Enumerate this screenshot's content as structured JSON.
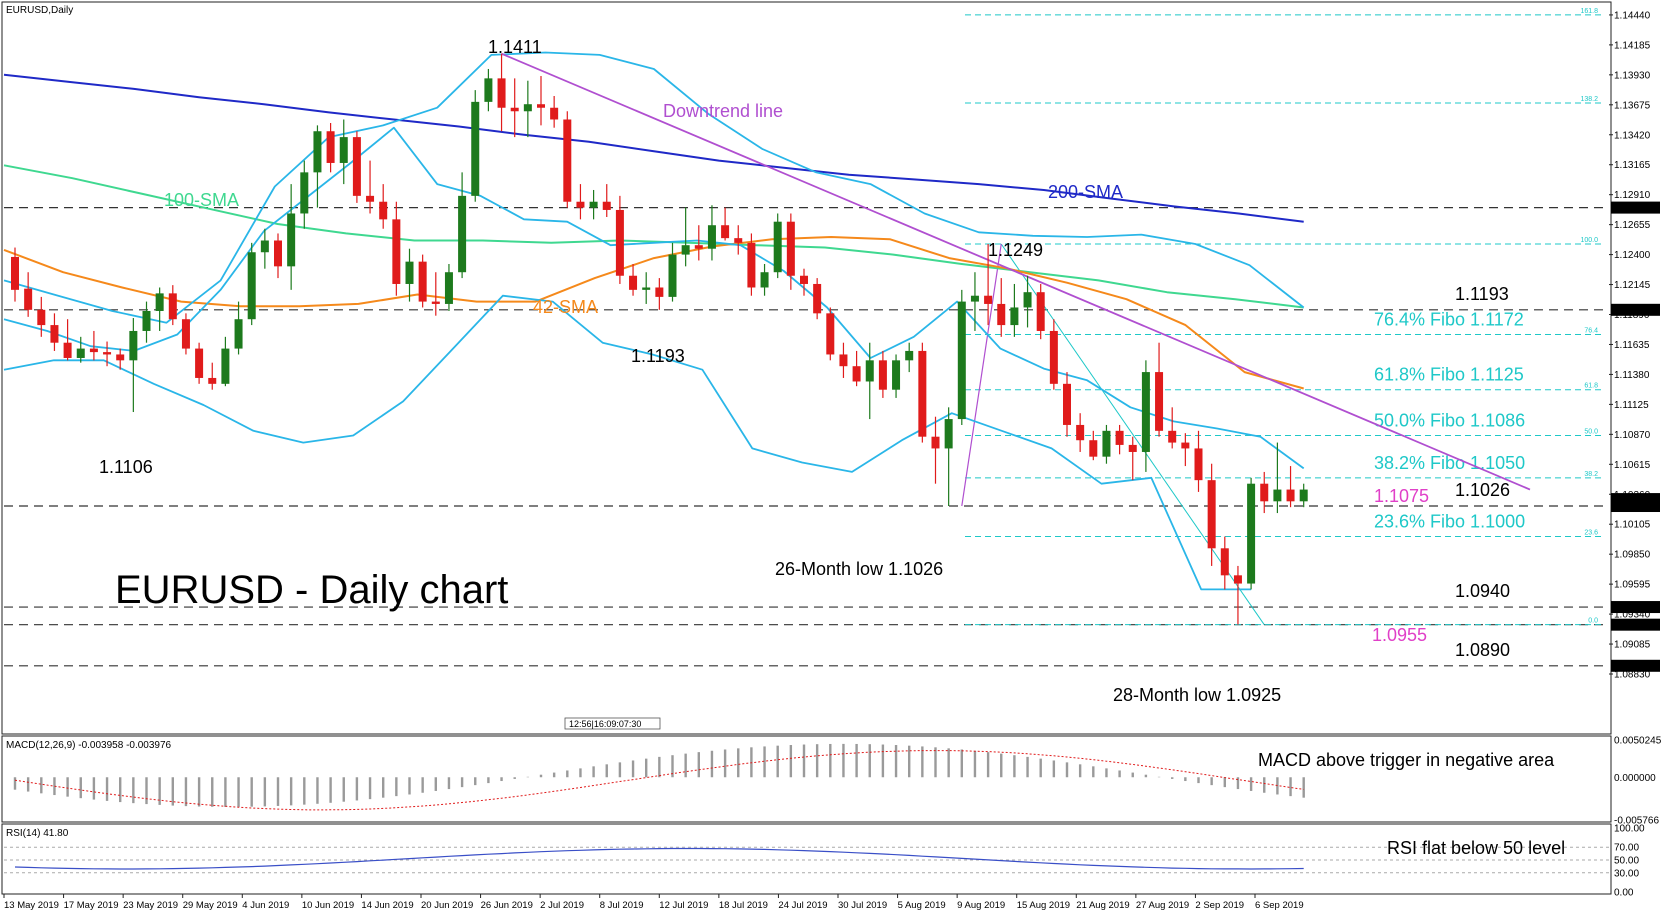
{
  "header": {
    "symbol": "EURUSD,Daily"
  },
  "title": "EURUSD - Daily chart",
  "colors": {
    "bull": "#1d7a1d",
    "bear": "#e01b1b",
    "sma200": "#1f29c7",
    "sma100": "#3fd890",
    "sma42": "#f5891b",
    "bollinger": "#2ab6e8",
    "downtrend": "#b04fd0",
    "fibo": "#1ec8c8",
    "magenta": "#e040c8",
    "macd_signal": "#e01b1b",
    "rsi": "#3a4fc7"
  },
  "chart_data": [
    {
      "type": "candlestick",
      "name": "price",
      "ylim": [
        1.08745,
        1.14533
      ],
      "y_ticks": [
        "1.14440",
        "1.14185",
        "1.13930",
        "1.13675",
        "1.13420",
        "1.13165",
        "1.12910",
        "1.12655",
        "1.12400",
        "1.12145",
        "1.11890",
        "1.11635",
        "1.11380",
        "1.11125",
        "1.10870",
        "1.10615",
        "1.10360",
        "1.10105",
        "1.09850",
        "1.09595",
        "1.09340",
        "1.09085",
        "1.08830"
      ],
      "x_labels": [
        "13 May 2019",
        "17 May 2019",
        "23 May 2019",
        "29 May 2019",
        "4 Jun 2019",
        "10 Jun 2019",
        "14 Jun 2019",
        "20 Jun 2019",
        "26 Jun 2019",
        "2 Jul 2019",
        "8 Jul 2019",
        "12 Jul 2019",
        "18 Jul 2019",
        "24 Jul 2019",
        "30 Jul 2019",
        "5 Aug 2019",
        "9 Aug 2019",
        "15 Aug 2019",
        "21 Aug 2019",
        "27 Aug 2019",
        "2 Sep 2019",
        "6 Sep 2019"
      ],
      "candles": [
        [
          1.1238,
          1.1246,
          1.12,
          1.121
        ],
        [
          1.1211,
          1.1225,
          1.1187,
          1.1193
        ],
        [
          1.1193,
          1.1204,
          1.117,
          1.118
        ],
        [
          1.118,
          1.119,
          1.1158,
          1.1165
        ],
        [
          1.1165,
          1.1185,
          1.115,
          1.1152
        ],
        [
          1.1152,
          1.117,
          1.1148,
          1.116
        ],
        [
          1.116,
          1.1175,
          1.115,
          1.1157
        ],
        [
          1.1157,
          1.1166,
          1.1145,
          1.1155
        ],
        [
          1.1155,
          1.116,
          1.1142,
          1.115
        ],
        [
          1.115,
          1.1186,
          1.1106,
          1.1175
        ],
        [
          1.1175,
          1.12,
          1.1165,
          1.1192
        ],
        [
          1.1192,
          1.1212,
          1.1175,
          1.1207
        ],
        [
          1.1207,
          1.1214,
          1.118,
          1.1185
        ],
        [
          1.1185,
          1.119,
          1.1155,
          1.116
        ],
        [
          1.116,
          1.1165,
          1.113,
          1.1135
        ],
        [
          1.1135,
          1.1148,
          1.1125,
          1.113
        ],
        [
          1.113,
          1.117,
          1.1128,
          1.116
        ],
        [
          1.116,
          1.12,
          1.1155,
          1.1185
        ],
        [
          1.1185,
          1.125,
          1.118,
          1.1242
        ],
        [
          1.1242,
          1.1262,
          1.1228,
          1.1252
        ],
        [
          1.1252,
          1.1258,
          1.122,
          1.123
        ],
        [
          1.123,
          1.13,
          1.121,
          1.1275
        ],
        [
          1.1275,
          1.132,
          1.1262,
          1.131
        ],
        [
          1.131,
          1.135,
          1.128,
          1.1345
        ],
        [
          1.1345,
          1.1352,
          1.131,
          1.1318
        ],
        [
          1.1318,
          1.1355,
          1.13,
          1.134
        ],
        [
          1.134,
          1.1345,
          1.1284,
          1.129
        ],
        [
          1.129,
          1.132,
          1.1275,
          1.1285
        ],
        [
          1.1285,
          1.13,
          1.1262,
          1.127
        ],
        [
          1.127,
          1.1285,
          1.1205,
          1.1215
        ],
        [
          1.1215,
          1.1245,
          1.12,
          1.1234
        ],
        [
          1.1234,
          1.124,
          1.1195,
          1.12
        ],
        [
          1.12,
          1.1225,
          1.1188,
          1.1198
        ],
        [
          1.1198,
          1.1232,
          1.1192,
          1.1225
        ],
        [
          1.1225,
          1.131,
          1.122,
          1.129
        ],
        [
          1.129,
          1.138,
          1.1285,
          1.137
        ],
        [
          1.137,
          1.1398,
          1.1362,
          1.139
        ],
        [
          1.139,
          1.1411,
          1.1345,
          1.1365
        ],
        [
          1.1365,
          1.139,
          1.134,
          1.1362
        ],
        [
          1.1362,
          1.1388,
          1.134,
          1.1368
        ],
        [
          1.1368,
          1.1392,
          1.135,
          1.1365
        ],
        [
          1.1365,
          1.1375,
          1.1348,
          1.1355
        ],
        [
          1.1355,
          1.1362,
          1.128,
          1.1285
        ],
        [
          1.1285,
          1.13,
          1.127,
          1.128
        ],
        [
          1.128,
          1.1295,
          1.127,
          1.1285
        ],
        [
          1.1285,
          1.13,
          1.1272,
          1.1278
        ],
        [
          1.1278,
          1.129,
          1.1215,
          1.1222
        ],
        [
          1.1222,
          1.1232,
          1.1205,
          1.121
        ],
        [
          1.121,
          1.1225,
          1.1198,
          1.1212
        ],
        [
          1.1212,
          1.122,
          1.1193,
          1.1204
        ],
        [
          1.1204,
          1.125,
          1.12,
          1.124
        ],
        [
          1.124,
          1.128,
          1.123,
          1.1248
        ],
        [
          1.1248,
          1.1265,
          1.1235,
          1.1245
        ],
        [
          1.1245,
          1.1282,
          1.1235,
          1.1265
        ],
        [
          1.1265,
          1.128,
          1.1252,
          1.1254
        ],
        [
          1.1254,
          1.1265,
          1.124,
          1.125
        ],
        [
          1.125,
          1.1258,
          1.1205,
          1.1212
        ],
        [
          1.1212,
          1.1232,
          1.1205,
          1.1225
        ],
        [
          1.1225,
          1.1275,
          1.122,
          1.1268
        ],
        [
          1.1268,
          1.1275,
          1.121,
          1.1222
        ],
        [
          1.1222,
          1.1228,
          1.1205,
          1.1215
        ],
        [
          1.1215,
          1.122,
          1.1185,
          1.119
        ],
        [
          1.119,
          1.1195,
          1.115,
          1.1155
        ],
        [
          1.1155,
          1.1165,
          1.1135,
          1.1145
        ],
        [
          1.1145,
          1.1158,
          1.1128,
          1.1132
        ],
        [
          1.1132,
          1.1165,
          1.11,
          1.115
        ],
        [
          1.115,
          1.1158,
          1.1118,
          1.1125
        ],
        [
          1.1125,
          1.1155,
          1.1118,
          1.115
        ],
        [
          1.115,
          1.1165,
          1.114,
          1.1158
        ],
        [
          1.1158,
          1.1165,
          1.108,
          1.1085
        ],
        [
          1.1085,
          1.1102,
          1.1045,
          1.1075
        ],
        [
          1.1075,
          1.111,
          1.1026,
          1.11
        ],
        [
          1.11,
          1.121,
          1.1095,
          1.12
        ],
        [
          1.12,
          1.1225,
          1.1175,
          1.1205
        ],
        [
          1.1205,
          1.1249,
          1.118,
          1.1198
        ],
        [
          1.1198,
          1.122,
          1.117,
          1.118
        ],
        [
          1.118,
          1.1215,
          1.117,
          1.1195
        ],
        [
          1.1195,
          1.1222,
          1.1178,
          1.1208
        ],
        [
          1.1208,
          1.1215,
          1.1168,
          1.1175
        ],
        [
          1.1175,
          1.1185,
          1.1125,
          1.113
        ],
        [
          1.113,
          1.114,
          1.1085,
          1.1095
        ],
        [
          1.1095,
          1.1105,
          1.1072,
          1.1082
        ],
        [
          1.1082,
          1.109,
          1.1065,
          1.1068
        ],
        [
          1.1068,
          1.1095,
          1.1062,
          1.109
        ],
        [
          1.109,
          1.1095,
          1.107,
          1.1078
        ],
        [
          1.1078,
          1.1085,
          1.1048,
          1.1072
        ],
        [
          1.1072,
          1.115,
          1.1055,
          1.114
        ],
        [
          1.114,
          1.1165,
          1.1085,
          1.109
        ],
        [
          1.109,
          1.111,
          1.1075,
          1.108
        ],
        [
          1.108,
          1.1088,
          1.106,
          1.1075
        ],
        [
          1.1075,
          1.109,
          1.1038,
          1.1048
        ],
        [
          1.1048,
          1.1062,
          1.0975,
          1.099
        ],
        [
          1.099,
          1.1,
          1.0955,
          1.0967
        ],
        [
          1.0967,
          1.0975,
          1.0925,
          1.096
        ],
        [
          1.096,
          1.105,
          1.0955,
          1.1045
        ],
        [
          1.1045,
          1.1055,
          1.102,
          1.103
        ],
        [
          1.103,
          1.108,
          1.102,
          1.104
        ],
        [
          1.104,
          1.106,
          1.1025,
          1.103
        ],
        [
          1.103,
          1.1045,
          1.1025,
          1.104
        ]
      ],
      "axis_highlight_labels": [
        "1.12800",
        "1.11930",
        "1.10319",
        "1.10260",
        "1.09400",
        "1.09250",
        "1.08900"
      ],
      "horizontal_levels": [
        {
          "value": 1.128
        },
        {
          "value": 1.1193,
          "label": "1.1193"
        },
        {
          "value": 1.1026,
          "label": "1.1026"
        },
        {
          "value": 1.094,
          "label": "1.0940"
        },
        {
          "value": 1.0925
        },
        {
          "value": 1.089,
          "label": "1.0890"
        }
      ],
      "fibo_levels": [
        {
          "value": 1.1444,
          "pct": "161.8"
        },
        {
          "value": 1.1369,
          "pct": "138.2"
        },
        {
          "value": 1.1249,
          "pct": "100.0"
        },
        {
          "value": 1.1172,
          "pct": "76.4",
          "label": "76.4% Fibo 1.1172"
        },
        {
          "value": 1.1125,
          "pct": "61.8",
          "label": "61.8% Fibo 1.1125"
        },
        {
          "value": 1.1086,
          "pct": "50.0",
          "label": "50.0% Fibo 1.1086"
        },
        {
          "value": 1.105,
          "pct": "38.2",
          "label": "38.2% Fibo 1.1050"
        },
        {
          "value": 1.1,
          "pct": "23.6",
          "label": "23.6% Fibo 1.1000"
        },
        {
          "value": 1.0925,
          "pct": "0.0"
        }
      ],
      "series": [
        {
          "name": "200-SMA",
          "values": [
            1.1393,
            1.1387,
            1.1381,
            1.1374,
            1.1368,
            1.1361,
            1.1355,
            1.1349,
            1.1342,
            1.1336,
            1.1328,
            1.132,
            1.1314,
            1.1308,
            1.1304,
            1.13,
            1.1295,
            1.1288,
            1.1281,
            1.1275,
            1.1268
          ]
        },
        {
          "name": "100-SMA",
          "values": [
            1.1316,
            1.1305,
            1.1292,
            1.1279,
            1.1266,
            1.1258,
            1.1252,
            1.1252,
            1.125,
            1.1252,
            1.125,
            1.1248,
            1.1246,
            1.124,
            1.1232,
            1.1225,
            1.1218,
            1.1208,
            1.1202,
            1.1195
          ]
        },
        {
          "name": "42-SMA",
          "values": [
            1.1244,
            1.1225,
            1.1212,
            1.12,
            1.1196,
            1.1196,
            1.1198,
            1.1206,
            1.12,
            1.12,
            1.122,
            1.1237,
            1.1247,
            1.1253,
            1.1255,
            1.1253,
            1.1237,
            1.1228,
            1.1216,
            1.1202,
            1.118,
            1.114,
            1.1126
          ]
        },
        {
          "name": "bollinger-upper",
          "values": [
            1.1218,
            1.1205,
            1.1192,
            1.1182,
            1.1218,
            1.1298,
            1.134,
            1.135,
            1.1365,
            1.141,
            1.1412,
            1.141,
            1.1398,
            1.136,
            1.133,
            1.131,
            1.13,
            1.1275,
            1.1259,
            1.1256,
            1.1255,
            1.1257,
            1.1249,
            1.1231,
            1.1195
          ]
        },
        {
          "name": "bollinger-mid",
          "values": [
            1.1185,
            1.1175,
            1.1162,
            1.1158,
            1.1172,
            1.121,
            1.126,
            1.1289,
            1.1318,
            1.1348,
            1.13,
            1.129,
            1.127,
            1.1268,
            1.1248,
            1.125,
            1.1252,
            1.1248,
            1.1226,
            1.1195,
            1.1152,
            1.117,
            1.12,
            1.116,
            1.1143,
            1.1133,
            1.111,
            1.1098,
            1.1092,
            1.1085,
            1.1058
          ]
        },
        {
          "name": "bollinger-lower",
          "values": [
            1.1142,
            1.115,
            1.115,
            1.113,
            1.1112,
            1.109,
            1.108,
            1.1086,
            1.1115,
            1.116,
            1.1205,
            1.12,
            1.1165,
            1.1155,
            1.1142,
            1.1075,
            1.1063,
            1.1055,
            1.1082,
            1.1105,
            1.109,
            1.1075,
            1.1045,
            1.105,
            1.0955,
            1.0955
          ]
        },
        {
          "name": "Downtrend line",
          "values": [
            1.1411,
            1.104
          ]
        }
      ],
      "annotations": {
        "high_1411": "1.1411",
        "low_1106": "1.1106",
        "sma100": "100-SMA",
        "sma200": "200-SMA",
        "sma42": "42-SMA",
        "downtrend": "Downtrend line",
        "high_1249": "1.1249",
        "low_1193": "1.1193",
        "low_26m": "26-Month low 1.1026",
        "low_28m": "28-Month low 1.0925",
        "mag_1075": "1.1075",
        "mag_0955": "1.0955",
        "date_box": "12:56|16:09:07:30"
      }
    },
    {
      "type": "bar",
      "name": "MACD",
      "header": "MACD(12,26,9) -0.003958 -0.003976",
      "note": "MACD above trigger in negative area",
      "y_ticks": [
        "0.0050245",
        "0.000000",
        "-0.005766"
      ],
      "ylim": [
        -0.005766,
        0.0050245
      ],
      "histogram_range": [
        -0.004,
        0.0045
      ],
      "signal_range": [
        -0.0044,
        0.0036
      ]
    },
    {
      "type": "line",
      "name": "RSI",
      "header": "RSI(14) 41.80",
      "note": "RSI flat below 50 level",
      "y_ticks": [
        "100.00",
        "70.00",
        "50.00",
        "30.00",
        "0.00"
      ],
      "ylim": [
        0,
        100
      ],
      "range": [
        36,
        68
      ]
    }
  ]
}
